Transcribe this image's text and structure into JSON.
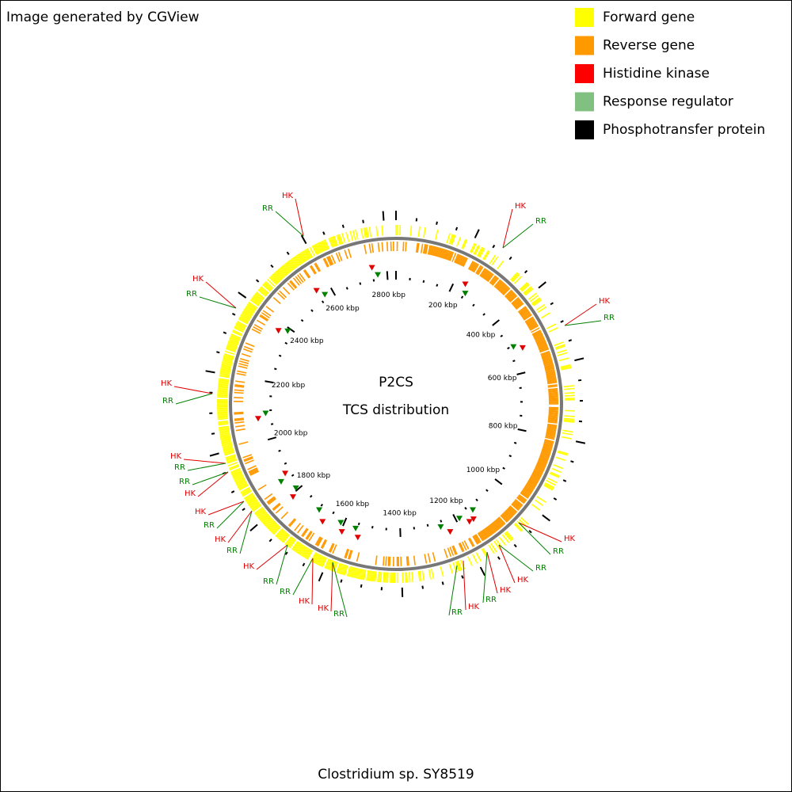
{
  "header": {
    "title": "Image generated by CGView"
  },
  "legend": [
    {
      "label": "Forward gene",
      "color": "#ffff00"
    },
    {
      "label": "Reverse gene",
      "color": "#ff9900"
    },
    {
      "label": "Histidine kinase",
      "color": "#ff0000"
    },
    {
      "label": "Response regulator",
      "color": "#80c080"
    },
    {
      "label": "Phosphotransfer protein",
      "color": "#000000"
    }
  ],
  "center": {
    "title": "P2CS",
    "subtitle": "TCS distribution"
  },
  "ruler_labels": [
    "200 kbp",
    "400 kbp",
    "600 kbp",
    "800 kbp",
    "1000 kbp",
    "1200 kbp",
    "1400 kbp",
    "1600 kbp",
    "1800 kbp",
    "2000 kbp",
    "2200 kbp",
    "2400 kbp",
    "2600 kbp",
    "2800 kbp"
  ],
  "callouts": [
    {
      "label": "HK",
      "color": "#e00000"
    },
    {
      "label": "RR",
      "color": "#008000"
    },
    {
      "label": "HK",
      "color": "#e00000"
    },
    {
      "label": "RR",
      "color": "#008000"
    },
    {
      "label": "HK",
      "color": "#e00000"
    },
    {
      "label": "RR",
      "color": "#008000"
    },
    {
      "label": "HK",
      "color": "#e00000"
    },
    {
      "label": "RR",
      "color": "#008000"
    },
    {
      "label": "HK",
      "color": "#e00000"
    },
    {
      "label": "RR",
      "color": "#008000"
    },
    {
      "label": "HK",
      "color": "#e00000"
    },
    {
      "label": "RR",
      "color": "#008000"
    },
    {
      "label": "RR",
      "color": "#008000"
    },
    {
      "label": "HK",
      "color": "#e00000"
    },
    {
      "label": "HK",
      "color": "#e00000"
    },
    {
      "label": "RR",
      "color": "#008000"
    },
    {
      "label": "HK",
      "color": "#e00000"
    },
    {
      "label": "RR",
      "color": "#008000"
    },
    {
      "label": "HK",
      "color": "#e00000"
    },
    {
      "label": "RR",
      "color": "#008000"
    },
    {
      "label": "RR",
      "color": "#008000"
    },
    {
      "label": "HK",
      "color": "#e00000"
    },
    {
      "label": "HK",
      "color": "#e00000"
    },
    {
      "label": "RR",
      "color": "#008000"
    },
    {
      "label": "RR",
      "color": "#008000"
    },
    {
      "label": "HK",
      "color": "#e00000"
    },
    {
      "label": "RR",
      "color": "#008000"
    },
    {
      "label": "HK",
      "color": "#e00000"
    },
    {
      "label": "HK",
      "color": "#e00000"
    },
    {
      "label": "RR",
      "color": "#008000"
    },
    {
      "label": "HK",
      "color": "#e00000"
    },
    {
      "label": "RR",
      "color": "#008000"
    }
  ],
  "footer": {
    "organism": "Clostridium sp. SY8519"
  }
}
